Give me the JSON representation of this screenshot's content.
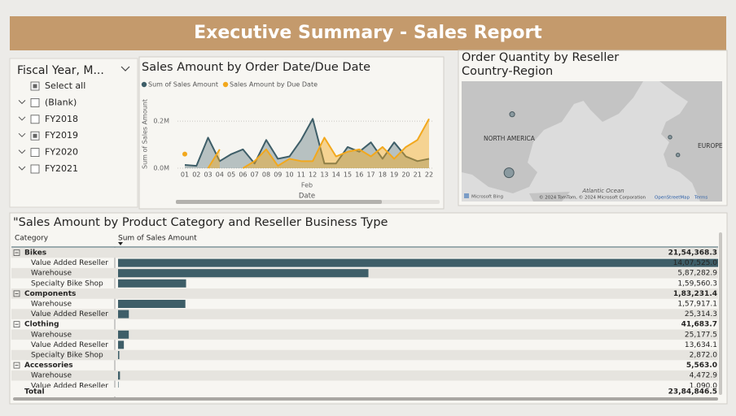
{
  "header": {
    "title": "Executive Summary - Sales Report"
  },
  "slicer": {
    "title": "Fiscal Year, M...",
    "items": [
      {
        "label": "Select all",
        "state": "partial",
        "expandable": false
      },
      {
        "label": "(Blank)",
        "state": "off",
        "expandable": true
      },
      {
        "label": "FY2018",
        "state": "off",
        "expandable": true
      },
      {
        "label": "FY2019",
        "state": "partial",
        "expandable": true
      },
      {
        "label": "FY2020",
        "state": "off",
        "expandable": true
      },
      {
        "label": "FY2021",
        "state": "off",
        "expandable": true
      }
    ]
  },
  "chart_data": [
    {
      "type": "area",
      "title": "Sales Amount by Order Date/Due Date",
      "y_label": "Sum of Sales Amount",
      "x_label": "Date",
      "x_sublabel": "Feb",
      "categories": [
        "01",
        "02",
        "03",
        "04",
        "05",
        "06",
        "07",
        "08",
        "09",
        "10",
        "11",
        "12",
        "13",
        "14",
        "15",
        "16",
        "17",
        "18",
        "19",
        "20",
        "21",
        "22"
      ],
      "series": [
        {
          "name": "Sum of Sales Amount",
          "color": "#3e5e68",
          "values": [
            0.014,
            0.01,
            0.13,
            0.03,
            0.06,
            0.08,
            0.02,
            0.12,
            0.04,
            0.05,
            0.12,
            0.21,
            0.02,
            0.02,
            0.09,
            0.07,
            0.11,
            0.04,
            0.11,
            0.05,
            0.03,
            0.04
          ]
        },
        {
          "name": "Sales Amount by Due Date",
          "color": "#f2a81d",
          "values": [
            0.06,
            null,
            0.0,
            0.08,
            null,
            0.0,
            0.03,
            0.08,
            0.01,
            0.04,
            0.03,
            0.03,
            0.13,
            0.05,
            0.07,
            0.08,
            0.05,
            0.09,
            0.04,
            0.09,
            0.12,
            0.21
          ]
        }
      ],
      "ylim": [
        0,
        0.28
      ],
      "yticks": [
        {
          "value": 0,
          "label": "0.0M"
        },
        {
          "value": 0.2,
          "label": "0.2M"
        }
      ],
      "grid": true
    },
    {
      "type": "map",
      "title": "Order Quantity by Reseller Country-Region",
      "x": [
        -103,
        -105,
        -3,
        2
      ],
      "y": [
        62,
        39,
        53,
        46
      ],
      "values": [
        8000,
        30000,
        4000,
        4000
      ],
      "xlim": [
        -135,
        30
      ],
      "ylim": [
        28,
        75
      ],
      "color": "#8a9aa0",
      "labels": [
        "NORTH AMERICA",
        "EUROPE",
        "Atlantic Ocean"
      ],
      "logo": "Microsoft Bing",
      "attribution": "© 2024 TomTom, © 2024 Microsoft Corporation",
      "links": [
        "OpenStreetMap",
        "Terms"
      ]
    },
    {
      "type": "bar",
      "title": "\"Sales Amount by Product Category and Reseller Business Type",
      "columns": [
        "Category",
        "Sum of Sales Amount"
      ],
      "color": "#3e5e68",
      "xlim": [
        0,
        1407525
      ],
      "groups": [
        {
          "name": "Bikes",
          "value": 2154368.3,
          "value_label": "21,54,368.3",
          "rows": [
            {
              "name": "Value Added Reseller",
              "value": 1407525.0,
              "value_label": "14,07,525.0"
            },
            {
              "name": "Warehouse",
              "value": 587282.9,
              "value_label": "5,87,282.9"
            },
            {
              "name": "Specialty Bike Shop",
              "value": 159560.3,
              "value_label": "1,59,560.3"
            }
          ]
        },
        {
          "name": "Components",
          "value": 183231.4,
          "value_label": "1,83,231.4",
          "rows": [
            {
              "name": "Warehouse",
              "value": 157917.1,
              "value_label": "1,57,917.1"
            },
            {
              "name": "Value Added Reseller",
              "value": 25314.3,
              "value_label": "25,314.3"
            }
          ]
        },
        {
          "name": "Clothing",
          "value": 41683.7,
          "value_label": "41,683.7",
          "rows": [
            {
              "name": "Warehouse",
              "value": 25177.5,
              "value_label": "25,177.5"
            },
            {
              "name": "Value Added Reseller",
              "value": 13634.1,
              "value_label": "13,634.1"
            },
            {
              "name": "Specialty Bike Shop",
              "value": 2872.0,
              "value_label": "2,872.0"
            }
          ]
        },
        {
          "name": "Accessories",
          "value": 5563.0,
          "value_label": "5,563.0",
          "rows": [
            {
              "name": "Warehouse",
              "value": 4472.9,
              "value_label": "4,472.9"
            },
            {
              "name": "Value Added Reseller",
              "value": 1090.0,
              "value_label": "1,090.0"
            }
          ]
        }
      ],
      "total": {
        "label": "Total",
        "value": 2384846.5,
        "value_label": "23,84,846.5"
      }
    }
  ]
}
